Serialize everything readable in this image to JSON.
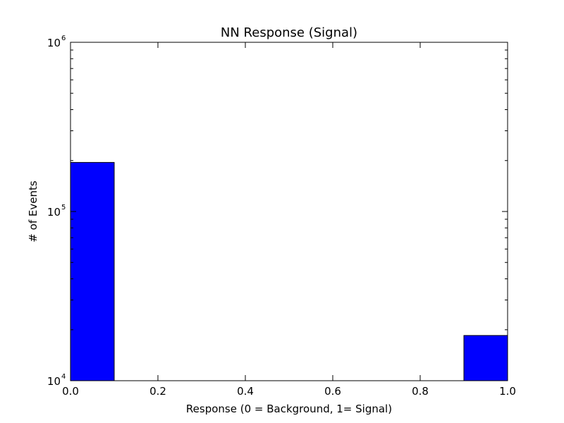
{
  "chart_data": {
    "type": "bar",
    "title": "NN Response (Signal)",
    "xlabel": "Response (0 = Background, 1= Signal)",
    "ylabel": "# of Events",
    "xlim": [
      0.0,
      1.0
    ],
    "ylim": [
      10000,
      1000000
    ],
    "yscale": "log",
    "grid": false,
    "x_ticks": [
      {
        "value": 0.0,
        "label": "0.0"
      },
      {
        "value": 0.2,
        "label": "0.2"
      },
      {
        "value": 0.4,
        "label": "0.4"
      },
      {
        "value": 0.6,
        "label": "0.6"
      },
      {
        "value": 0.8,
        "label": "0.8"
      },
      {
        "value": 1.0,
        "label": "1.0"
      }
    ],
    "y_ticks": [
      {
        "value": 10000,
        "base": "10",
        "exp": "4"
      },
      {
        "value": 100000,
        "base": "10",
        "exp": "5"
      },
      {
        "value": 1000000,
        "base": "10",
        "exp": "6"
      }
    ],
    "bins": [
      {
        "x0": 0.0,
        "x1": 0.1,
        "value": 195000
      },
      {
        "x0": 0.1,
        "x1": 0.2,
        "value": 0
      },
      {
        "x0": 0.2,
        "x1": 0.3,
        "value": 0
      },
      {
        "x0": 0.3,
        "x1": 0.4,
        "value": 0
      },
      {
        "x0": 0.4,
        "x1": 0.5,
        "value": 0
      },
      {
        "x0": 0.5,
        "x1": 0.6,
        "value": 0
      },
      {
        "x0": 0.6,
        "x1": 0.7,
        "value": 0
      },
      {
        "x0": 0.7,
        "x1": 0.8,
        "value": 0
      },
      {
        "x0": 0.8,
        "x1": 0.9,
        "value": 0
      },
      {
        "x0": 0.9,
        "x1": 1.0,
        "value": 18500
      }
    ],
    "bar_color": "#0000ff",
    "edge_color": "#000000"
  }
}
